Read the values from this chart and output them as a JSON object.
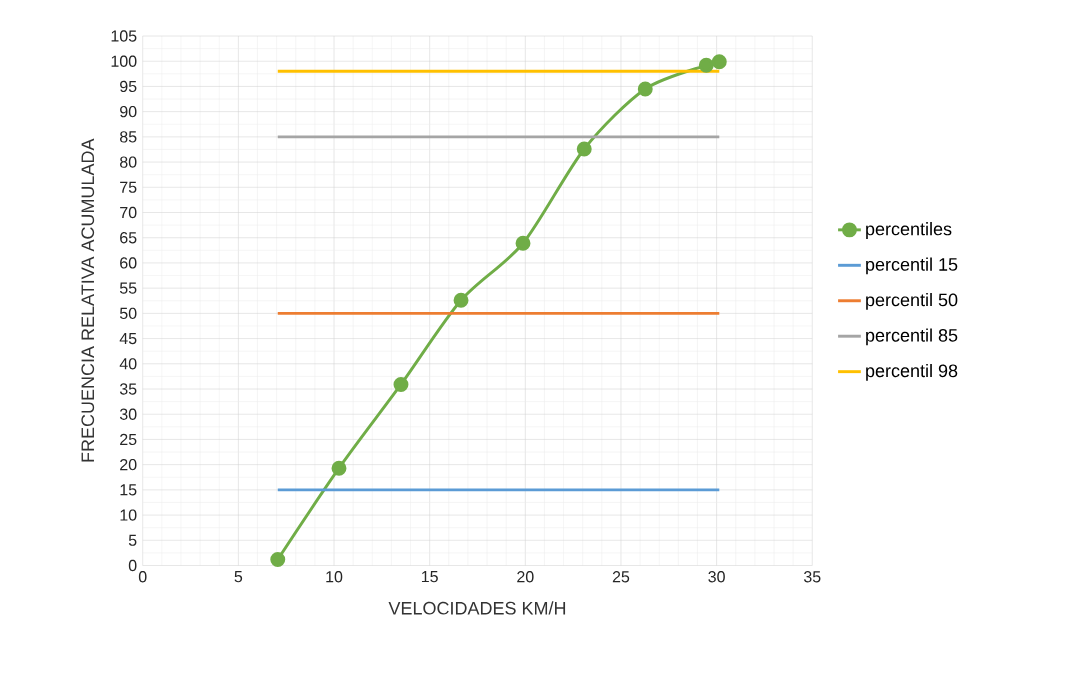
{
  "chart_data": {
    "type": "line",
    "xlabel": "VELOCIDADES KM/H",
    "ylabel": "FRECUENCIA RELATIVA ACUMULADA",
    "xlim": [
      0,
      35
    ],
    "xticks": [
      0,
      5,
      10,
      15,
      20,
      25,
      30,
      35
    ],
    "ylim": [
      0,
      105
    ],
    "yticks": [
      0,
      5,
      10,
      15,
      20,
      25,
      30,
      35,
      40,
      45,
      50,
      55,
      60,
      65,
      70,
      75,
      80,
      85,
      90,
      95,
      100,
      105
    ],
    "grid": true,
    "legend": "right",
    "line_style": "solid",
    "series": [
      {
        "name": "percentiles",
        "color": "#70ad47",
        "marker": "circle",
        "x": [
          7.06,
          10.26,
          13.5,
          16.64,
          19.88,
          23.08,
          26.27,
          29.46,
          30.14
        ],
        "values": [
          1.2,
          19.3,
          35.9,
          52.6,
          63.9,
          82.6,
          94.5,
          99.2,
          99.9
        ]
      },
      {
        "name": "percentil 15",
        "color": "#5b9bd5",
        "marker": "none",
        "x": [
          7.06,
          30.14
        ],
        "values": [
          15,
          15
        ]
      },
      {
        "name": "percentil 50",
        "color": "#ed7d31",
        "marker": "none",
        "x": [
          7.06,
          30.14
        ],
        "values": [
          50,
          50
        ]
      },
      {
        "name": "percentil 85",
        "color": "#a5a5a5",
        "marker": "none",
        "x": [
          7.06,
          30.14
        ],
        "values": [
          85,
          85
        ]
      },
      {
        "name": "percentil 98",
        "color": "#ffc000",
        "marker": "none",
        "x": [
          7.06,
          30.14
        ],
        "values": [
          98,
          98
        ]
      }
    ]
  }
}
